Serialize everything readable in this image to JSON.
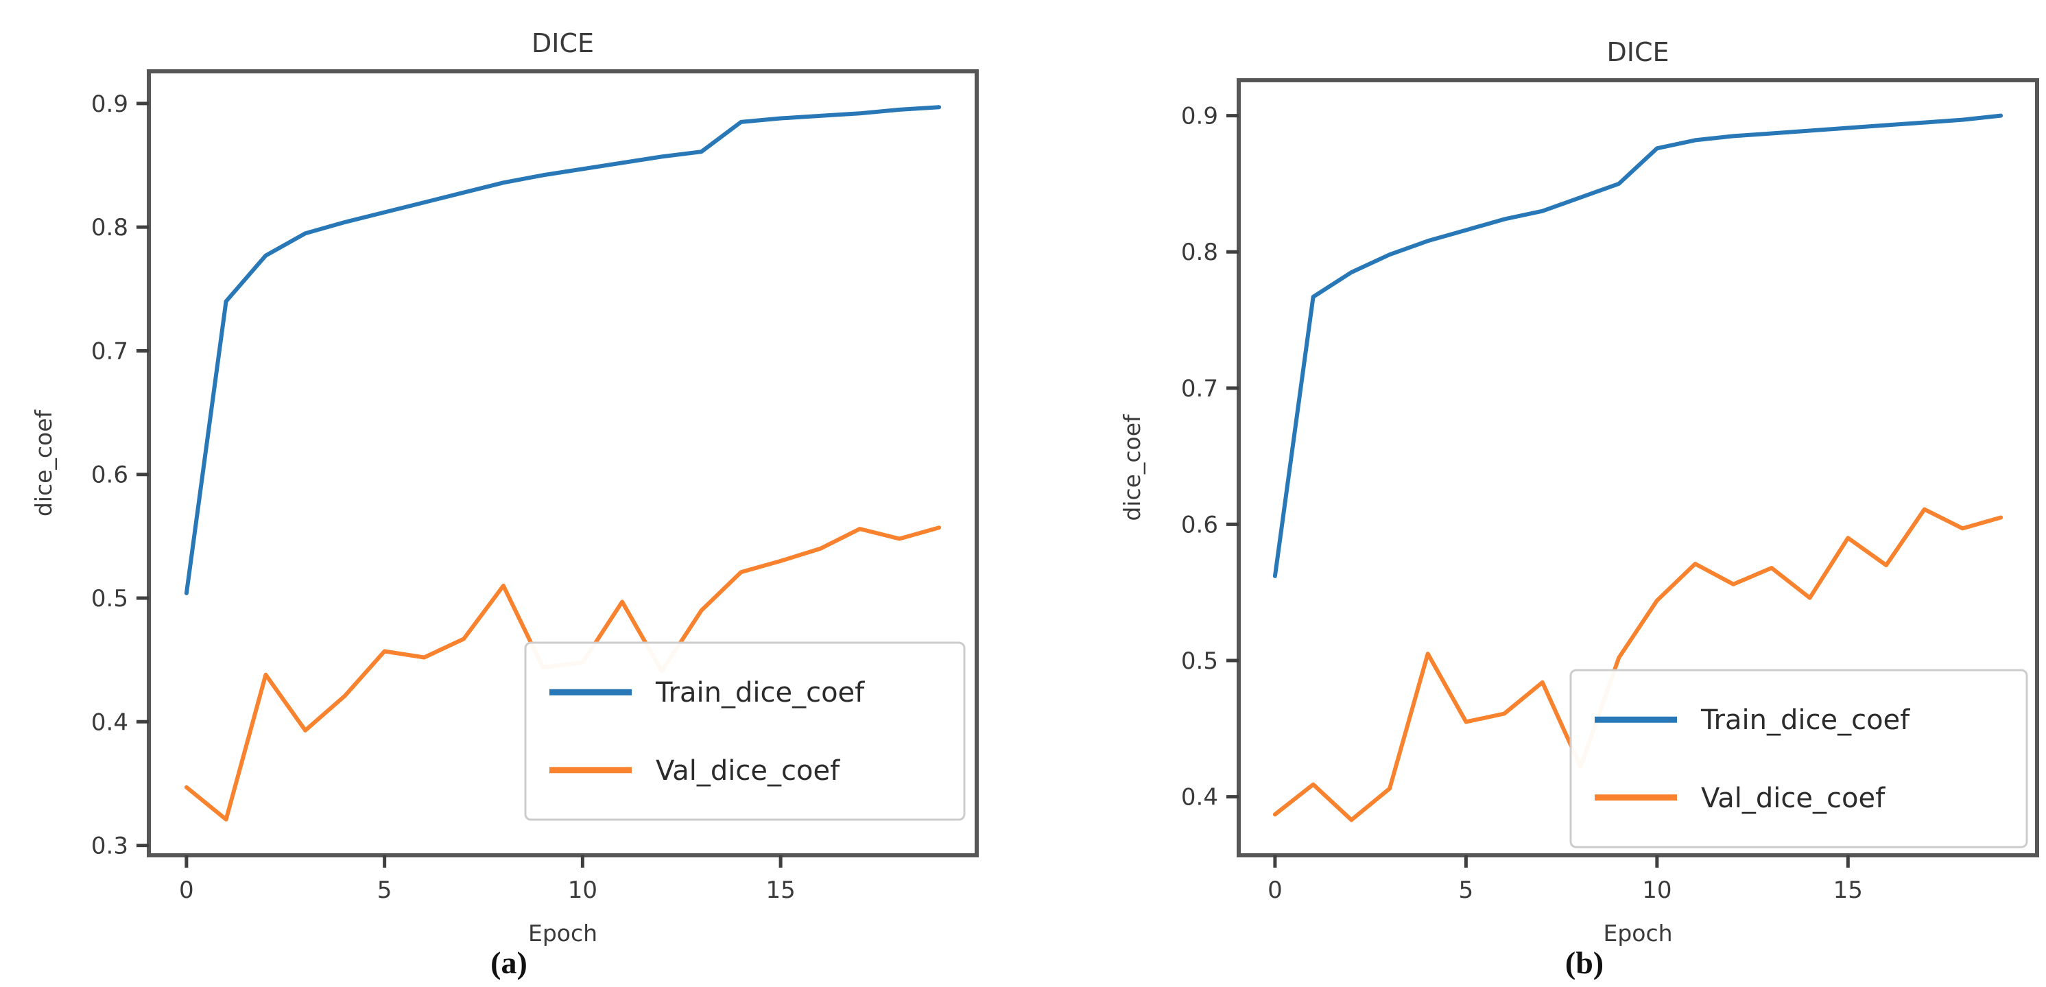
{
  "figure": {
    "background": "#ffffff",
    "captions": {
      "a": "(a)",
      "b": "(b)"
    }
  },
  "colors": {
    "axis": "#565656",
    "tick": "#3f3f3f",
    "text": "#3a3a3a",
    "legend_border": "#cccccc",
    "legend_background": "#ffffff",
    "train_line": "#2878b8",
    "val_line": "#f8822d"
  },
  "chart_data": [
    {
      "type": "line",
      "panel": "a",
      "caption": "(a)",
      "title": "DICE",
      "xlabel": "Epoch",
      "ylabel": "dice_coef",
      "grid": false,
      "legend_position": "lower right",
      "legend_entries": [
        "Train_dice_coef",
        "Val_dice_coef"
      ],
      "x_ticks": [
        0,
        5,
        10,
        15
      ],
      "y_ticks": [
        0.3,
        0.4,
        0.5,
        0.6,
        0.7,
        0.8,
        0.9
      ],
      "xlim": [
        -0.95,
        19.95
      ],
      "ylim": [
        0.292,
        0.926
      ],
      "x": [
        0,
        1,
        2,
        3,
        4,
        5,
        6,
        7,
        8,
        9,
        10,
        11,
        12,
        13,
        14,
        15,
        16,
        17,
        18,
        19
      ],
      "series": [
        {
          "name": "Train_dice_coef",
          "color": "#2878b8",
          "values": [
            0.504,
            0.74,
            0.777,
            0.795,
            0.804,
            0.812,
            0.82,
            0.828,
            0.836,
            0.842,
            0.847,
            0.852,
            0.857,
            0.861,
            0.885,
            0.888,
            0.89,
            0.892,
            0.895,
            0.897
          ]
        },
        {
          "name": "Val_dice_coef",
          "color": "#f8822d",
          "values": [
            0.347,
            0.321,
            0.438,
            0.393,
            0.421,
            0.457,
            0.452,
            0.467,
            0.51,
            0.444,
            0.448,
            0.497,
            0.441,
            0.49,
            0.521,
            0.53,
            0.54,
            0.556,
            0.548,
            0.557
          ]
        }
      ]
    },
    {
      "type": "line",
      "panel": "b",
      "caption": "(b)",
      "title": "DICE",
      "xlabel": "Epoch",
      "ylabel": "dice_coef",
      "grid": false,
      "legend_position": "lower right",
      "legend_entries": [
        "Train_dice_coef",
        "Val_dice_coef"
      ],
      "x_ticks": [
        0,
        5,
        10,
        15
      ],
      "y_ticks": [
        0.4,
        0.5,
        0.6,
        0.7,
        0.8,
        0.9
      ],
      "xlim": [
        -0.95,
        19.95
      ],
      "ylim": [
        0.357,
        0.926
      ],
      "x": [
        0,
        1,
        2,
        3,
        4,
        5,
        6,
        7,
        8,
        9,
        10,
        11,
        12,
        13,
        14,
        15,
        16,
        17,
        18,
        19
      ],
      "series": [
        {
          "name": "Train_dice_coef",
          "color": "#2878b8",
          "values": [
            0.562,
            0.767,
            0.785,
            0.798,
            0.808,
            0.816,
            0.824,
            0.83,
            0.84,
            0.85,
            0.876,
            0.882,
            0.885,
            0.887,
            0.889,
            0.891,
            0.893,
            0.895,
            0.897,
            0.9
          ]
        },
        {
          "name": "Val_dice_coef",
          "color": "#f8822d",
          "values": [
            0.387,
            0.409,
            0.383,
            0.406,
            0.505,
            0.455,
            0.461,
            0.484,
            0.422,
            0.502,
            0.544,
            0.571,
            0.556,
            0.568,
            0.546,
            0.59,
            0.57,
            0.611,
            0.597,
            0.605
          ]
        }
      ]
    }
  ]
}
